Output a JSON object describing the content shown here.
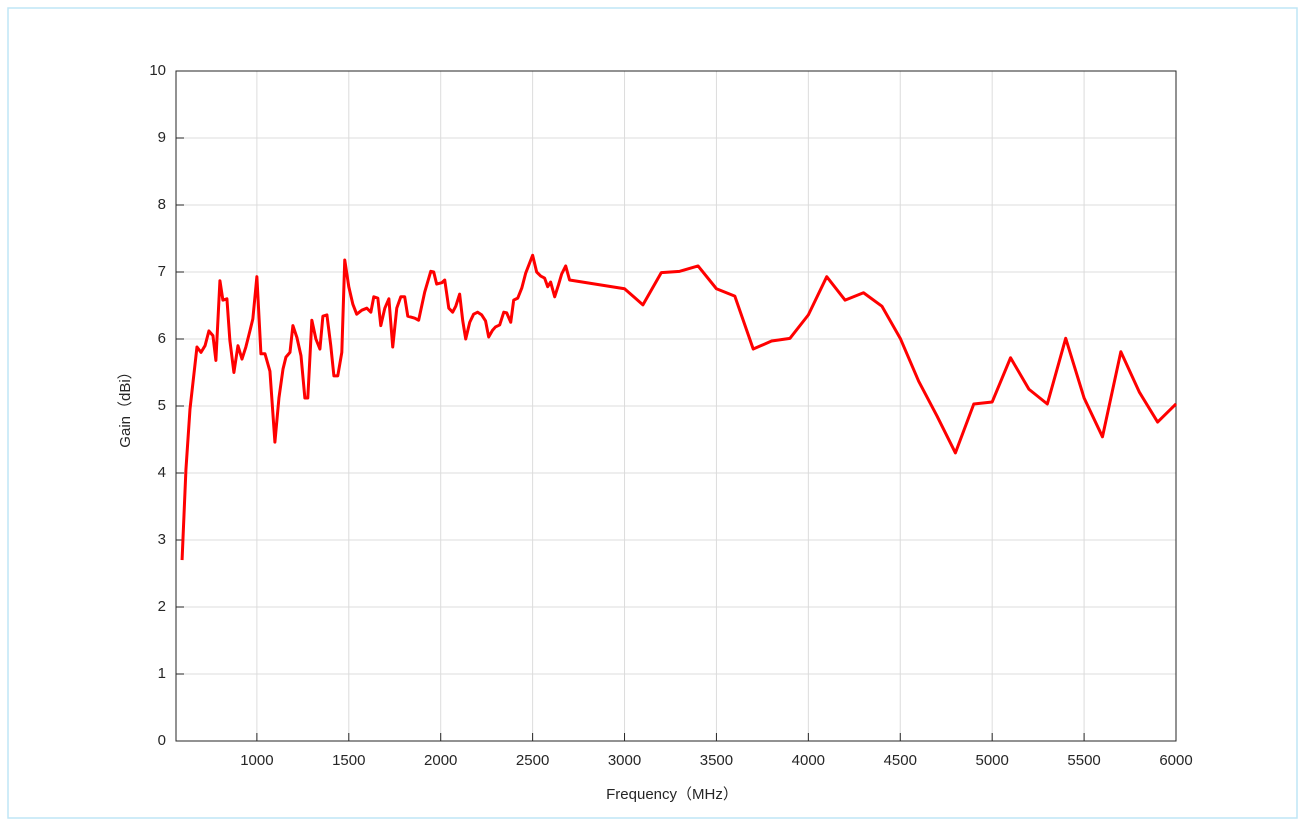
{
  "chart_data": {
    "type": "line",
    "x_label": "Frequency（MHz）",
    "y_label": "Gain（dBi）",
    "x": [
      593,
      614,
      636,
      674,
      696,
      718,
      739,
      761,
      777,
      799,
      815,
      837,
      853,
      875,
      897,
      919,
      940,
      962,
      978,
      1000,
      1022,
      1044,
      1071,
      1098,
      1120,
      1142,
      1158,
      1180,
      1196,
      1218,
      1240,
      1261,
      1277,
      1299,
      1321,
      1343,
      1359,
      1381,
      1402,
      1419,
      1440,
      1462,
      1478,
      1500,
      1522,
      1543,
      1571,
      1598,
      1620,
      1636,
      1658,
      1674,
      1696,
      1718,
      1739,
      1761,
      1783,
      1804,
      1821,
      1859,
      1880,
      1913,
      1946,
      1962,
      1978,
      2006,
      2022,
      2044,
      2065,
      2082,
      2103,
      2120,
      2136,
      2158,
      2179,
      2201,
      2223,
      2244,
      2261,
      2282,
      2298,
      2321,
      2343,
      2359,
      2381,
      2397,
      2419,
      2441,
      2462,
      2500,
      2522,
      2544,
      2565,
      2582,
      2598,
      2620,
      2641,
      2658,
      2680,
      2701,
      3000,
      3100,
      3200,
      3300,
      3400,
      3500,
      3600,
      3700,
      3800,
      3900,
      4000,
      4100,
      4200,
      4300,
      4400,
      4500,
      4600,
      4700,
      4800,
      4900,
      5000,
      5100,
      5200,
      5300,
      5400,
      5500,
      5600,
      5700,
      5800,
      5900,
      6000
    ],
    "values": [
      2.7,
      4.05,
      4.95,
      5.88,
      5.8,
      5.9,
      6.12,
      6.05,
      5.68,
      6.87,
      6.58,
      6.6,
      5.98,
      5.5,
      5.9,
      5.7,
      5.88,
      6.12,
      6.3,
      6.93,
      5.78,
      5.78,
      5.52,
      4.46,
      5.12,
      5.55,
      5.73,
      5.8,
      6.2,
      6.02,
      5.75,
      5.12,
      5.12,
      6.28,
      6.0,
      5.85,
      6.34,
      6.36,
      5.9,
      5.45,
      5.45,
      5.8,
      7.18,
      6.78,
      6.52,
      6.37,
      6.43,
      6.46,
      6.4,
      6.63,
      6.61,
      6.2,
      6.46,
      6.6,
      5.88,
      6.46,
      6.63,
      6.63,
      6.34,
      6.31,
      6.28,
      6.7,
      7.01,
      7.0,
      6.82,
      6.84,
      6.88,
      6.46,
      6.4,
      6.49,
      6.67,
      6.27,
      6.0,
      6.25,
      6.37,
      6.4,
      6.36,
      6.27,
      6.03,
      6.13,
      6.18,
      6.21,
      6.4,
      6.39,
      6.25,
      6.58,
      6.61,
      6.76,
      6.98,
      7.25,
      7.0,
      6.94,
      6.91,
      6.78,
      6.85,
      6.63,
      6.81,
      6.97,
      7.09,
      6.88,
      6.75,
      6.51,
      6.99,
      7.01,
      7.09,
      6.75,
      6.64,
      5.85,
      5.97,
      6.01,
      6.36,
      6.93,
      6.58,
      6.69,
      6.49,
      6.01,
      5.37,
      4.85,
      4.3,
      5.03,
      5.06,
      5.72,
      5.25,
      5.03,
      6.01,
      5.12,
      4.54,
      5.81,
      5.21,
      4.76,
      5.03
    ],
    "color": "#ff0000",
    "xlim": [
      560,
      6000
    ],
    "xticks": [
      1000,
      1500,
      2000,
      2500,
      3000,
      3500,
      4000,
      4500,
      5000,
      5500,
      6000
    ],
    "ylim": [
      0,
      10
    ],
    "yticks": [
      0,
      1,
      2,
      3,
      4,
      5,
      6,
      7,
      8,
      9,
      10
    ],
    "grid": true
  }
}
